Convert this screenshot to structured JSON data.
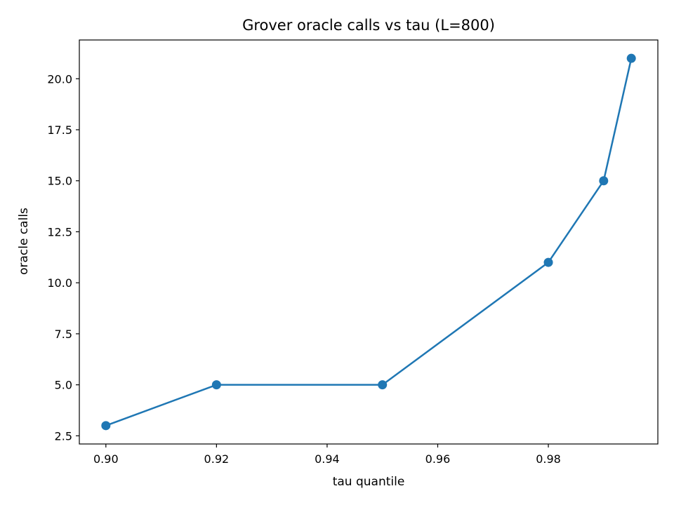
{
  "chart_data": {
    "type": "line",
    "title": "Grover oracle calls vs tau (L=800)",
    "xlabel": "tau quantile",
    "ylabel": "oracle calls",
    "x": [
      0.9,
      0.92,
      0.95,
      0.98,
      0.99,
      0.995
    ],
    "series": [
      {
        "values": [
          3,
          5,
          5,
          11,
          15,
          21
        ],
        "color": "#1f77b4",
        "marker": "circle"
      }
    ],
    "xlim": [
      0.8952,
      0.9998
    ],
    "ylim": [
      2.1,
      21.9
    ],
    "xticks": [
      0.9,
      0.92,
      0.94,
      0.96,
      0.98
    ],
    "xtick_labels": [
      "0.90",
      "0.92",
      "0.94",
      "0.96",
      "0.98"
    ],
    "yticks": [
      2.5,
      5.0,
      7.5,
      10.0,
      12.5,
      15.0,
      17.5,
      20.0
    ],
    "ytick_labels": [
      "2.5",
      "5.0",
      "7.5",
      "10.0",
      "12.5",
      "15.0",
      "17.5",
      "20.0"
    ],
    "grid": false,
    "legend": false
  }
}
